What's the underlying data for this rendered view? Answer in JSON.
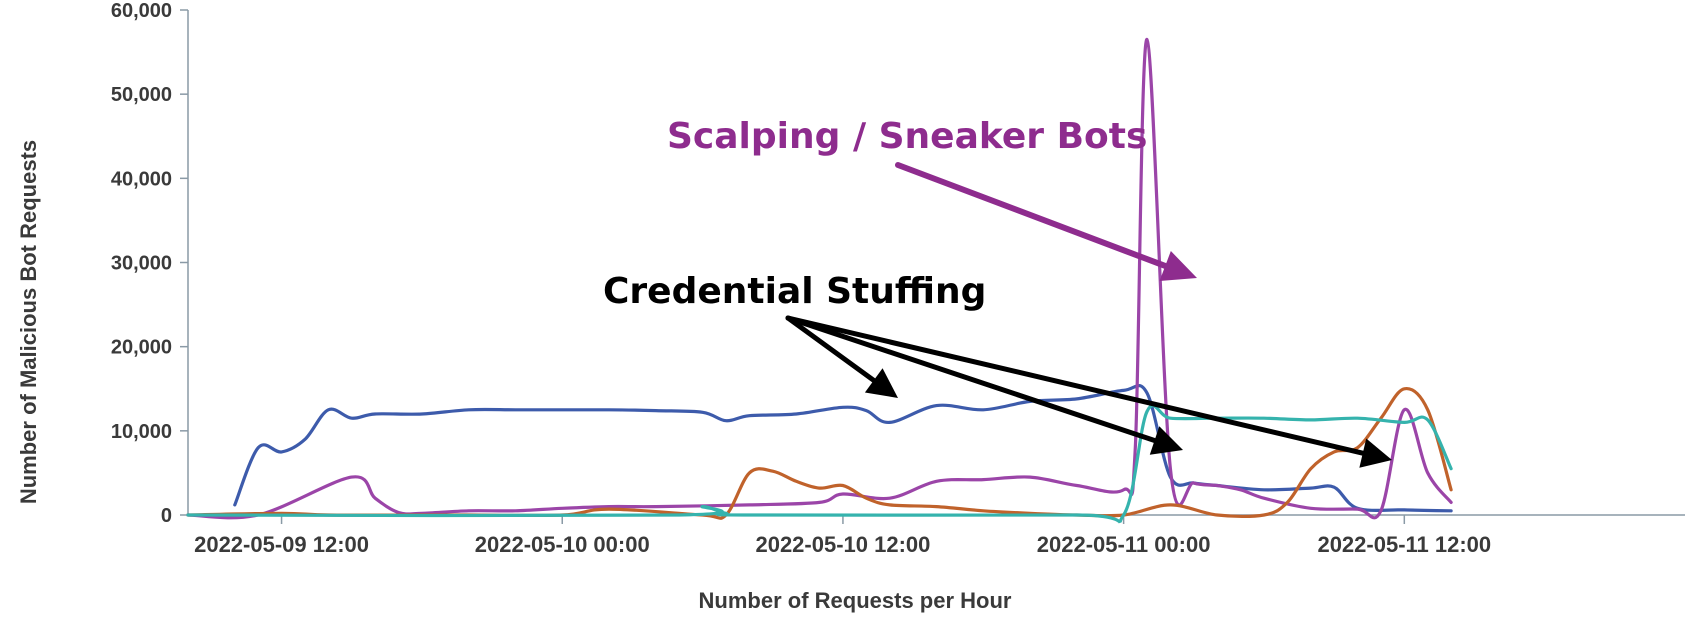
{
  "chart_data": {
    "type": "line",
    "xlabel": "Number of Requests per Hour",
    "ylabel": "Number of Malicious Bot Requests",
    "ylim": [
      0,
      60000
    ],
    "xlim": [
      "2022-05-09 08:00",
      "2022-05-12 00:00"
    ],
    "yticks": [
      0,
      10000,
      20000,
      30000,
      40000,
      50000,
      60000
    ],
    "ytick_labels": [
      "0",
      "10,000",
      "20,000",
      "30,000",
      "40,000",
      "50,000",
      "60,000"
    ],
    "xtick_labels": [
      "2022-05-09 12:00",
      "2022-05-10 00:00",
      "2022-05-10 12:00",
      "2022-05-11 00:00",
      "2022-05-11 12:00"
    ],
    "grid": false,
    "colors": {
      "blue": "#3d5bab",
      "purple": "#9b45a8",
      "orange": "#c0622b",
      "teal": "#35b3ad",
      "annotation_purple": "#8e2c8e",
      "annotation_black": "#000000"
    },
    "series": [
      {
        "color": "#3d5bab",
        "x": [
          "2022-05-09 10:00",
          "2022-05-09 11:00",
          "2022-05-09 12:00",
          "2022-05-09 13:00",
          "2022-05-09 14:00",
          "2022-05-09 15:00",
          "2022-05-09 16:00",
          "2022-05-09 18:00",
          "2022-05-09 20:00",
          "2022-05-09 22:00",
          "2022-05-10 00:00",
          "2022-05-10 02:00",
          "2022-05-10 04:00",
          "2022-05-10 06:00",
          "2022-05-10 07:00",
          "2022-05-10 08:00",
          "2022-05-10 10:00",
          "2022-05-10 12:00",
          "2022-05-10 13:00",
          "2022-05-10 14:00",
          "2022-05-10 16:00",
          "2022-05-10 18:00",
          "2022-05-10 20:00",
          "2022-05-10 22:00",
          "2022-05-11 00:00",
          "2022-05-11 01:00",
          "2022-05-11 02:00",
          "2022-05-11 03:00",
          "2022-05-11 04:00",
          "2022-05-11 06:00",
          "2022-05-11 08:00",
          "2022-05-11 09:00",
          "2022-05-11 10:00",
          "2022-05-11 12:00",
          "2022-05-11 14:00"
        ],
        "values": [
          1200,
          8000,
          7500,
          9000,
          12500,
          11500,
          12000,
          12000,
          12500,
          12500,
          12500,
          12500,
          12400,
          12200,
          11200,
          11800,
          12000,
          12800,
          12400,
          11000,
          13000,
          12500,
          13500,
          13800,
          14800,
          14500,
          4500,
          3800,
          3500,
          3000,
          3200,
          3300,
          800,
          600,
          500
        ]
      },
      {
        "color": "#9b45a8",
        "x": [
          "2022-05-09 08:00",
          "2022-05-09 11:00",
          "2022-05-09 15:00",
          "2022-05-09 16:00",
          "2022-05-09 17:00",
          "2022-05-09 18:00",
          "2022-05-09 20:00",
          "2022-05-09 22:00",
          "2022-05-10 00:00",
          "2022-05-10 02:00",
          "2022-05-10 04:00",
          "2022-05-10 08:00",
          "2022-05-10 11:00",
          "2022-05-10 12:00",
          "2022-05-10 14:00",
          "2022-05-10 16:00",
          "2022-05-10 18:00",
          "2022-05-10 20:00",
          "2022-05-10 22:00",
          "2022-05-11 00:00",
          "2022-05-11 00:30",
          "2022-05-11 01:00",
          "2022-05-11 02:00",
          "2022-05-11 03:00",
          "2022-05-11 04:00",
          "2022-05-11 05:00",
          "2022-05-11 06:00",
          "2022-05-11 08:00",
          "2022-05-11 10:00",
          "2022-05-11 11:00",
          "2022-05-11 12:00",
          "2022-05-11 13:00",
          "2022-05-11 14:00"
        ],
        "values": [
          0,
          0,
          4500,
          2000,
          300,
          200,
          500,
          500,
          800,
          1000,
          1000,
          1200,
          1500,
          2500,
          2000,
          4000,
          4200,
          4500,
          3500,
          3000,
          8000,
          56500,
          5500,
          3800,
          3500,
          3000,
          2000,
          800,
          700,
          500,
          12500,
          5000,
          1500
        ]
      },
      {
        "color": "#c0622b",
        "x": [
          "2022-05-09 08:00",
          "2022-05-09 12:00",
          "2022-05-09 14:00",
          "2022-05-09 18:00",
          "2022-05-09 20:00",
          "2022-05-10 00:00",
          "2022-05-10 02:00",
          "2022-05-10 06:00",
          "2022-05-10 07:00",
          "2022-05-10 08:00",
          "2022-05-10 09:00",
          "2022-05-10 10:00",
          "2022-05-10 11:00",
          "2022-05-10 12:00",
          "2022-05-10 13:00",
          "2022-05-10 14:00",
          "2022-05-10 16:00",
          "2022-05-10 18:00",
          "2022-05-10 20:00",
          "2022-05-10 22:00",
          "2022-05-11 00:00",
          "2022-05-11 02:00",
          "2022-05-11 04:00",
          "2022-05-11 06:00",
          "2022-05-11 07:00",
          "2022-05-11 08:00",
          "2022-05-11 09:00",
          "2022-05-11 10:00",
          "2022-05-11 11:00",
          "2022-05-11 12:00",
          "2022-05-11 13:00",
          "2022-05-11 14:00"
        ],
        "values": [
          0,
          200,
          0,
          0,
          0,
          0,
          700,
          0,
          0,
          5000,
          5200,
          4000,
          3200,
          3500,
          2000,
          1200,
          1000,
          500,
          200,
          0,
          0,
          1200,
          0,
          0,
          1500,
          5500,
          7500,
          8000,
          11500,
          15000,
          12500,
          3000
        ]
      },
      {
        "color": "#35b3ad",
        "x": [
          "2022-05-09 08:00",
          "2022-05-10 05:00",
          "2022-05-10 06:00",
          "2022-05-10 07:00",
          "2022-05-10 08:00",
          "2022-05-10 22:00",
          "2022-05-11 00:00",
          "2022-05-11 01:00",
          "2022-05-11 02:00",
          "2022-05-11 04:00",
          "2022-05-11 06:00",
          "2022-05-11 08:00",
          "2022-05-11 10:00",
          "2022-05-11 12:00",
          "2022-05-11 13:00",
          "2022-05-11 14:00"
        ],
        "values": [
          0,
          0,
          1000,
          200,
          0,
          0,
          0,
          12300,
          11500,
          11500,
          11500,
          11300,
          11500,
          11000,
          11300,
          5500
        ]
      }
    ],
    "annotations": [
      {
        "text": "Scalping / Sneaker Bots",
        "color": "#8e2c8e"
      },
      {
        "text": "Credential Stuffing",
        "color": "#000000"
      }
    ]
  }
}
